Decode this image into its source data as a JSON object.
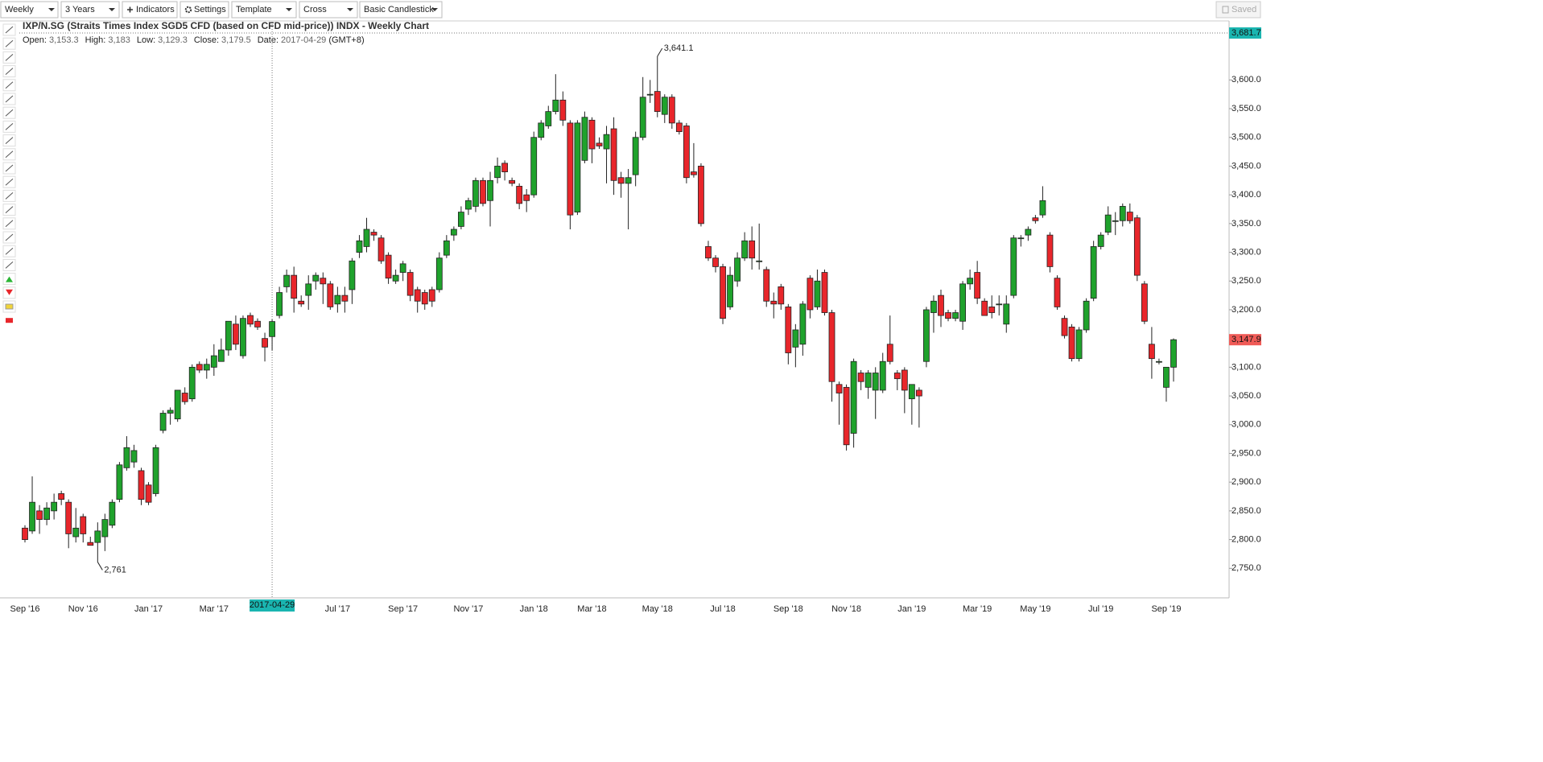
{
  "toolbar": {
    "interval": "Weekly",
    "range": "3 Years",
    "indicators": "Indicators",
    "settings": "Settings",
    "template": "Template",
    "cursor": "Cross",
    "style": "Basic Candlestick",
    "saved": "Saved"
  },
  "chart_data": {
    "type": "candlestick",
    "title": "IXP/N.SG (Straits Times Index SGD5 CFD (based on CFD mid-price)) INDX - Weekly Chart",
    "info": [
      {
        "label": "Open:",
        "value": "3,153.3"
      },
      {
        "label": "High:",
        "value": "3,183"
      },
      {
        "label": "Low:",
        "value": "3,129.3"
      },
      {
        "label": "Close:",
        "value": "3,179.5"
      },
      {
        "label": "Date:",
        "value": "2017-04-29"
      }
    ],
    "timezone": "(GMT+8)",
    "up_color": "#1fa22c",
    "down_color": "#e8262b",
    "categories": [
      "Sep '16",
      null,
      null,
      null,
      null,
      null,
      null,
      null,
      "Nov '16",
      null,
      null,
      null,
      null,
      null,
      null,
      null,
      null,
      "Jan '17",
      null,
      null,
      null,
      null,
      null,
      null,
      null,
      null,
      "Mar '17",
      null,
      null,
      null,
      null,
      null,
      null,
      null,
      "2017-04-29",
      null,
      null,
      null,
      null,
      null,
      null,
      null,
      null,
      "Jul '17",
      null,
      null,
      null,
      null,
      null,
      null,
      null,
      null,
      "Sep '17",
      null,
      null,
      null,
      null,
      null,
      null,
      null,
      null,
      "Nov '17",
      null,
      null,
      null,
      null,
      null,
      null,
      null,
      null,
      "Jan '18",
      null,
      null,
      null,
      null,
      null,
      null,
      null,
      "Mar '18",
      null,
      null,
      null,
      null,
      null,
      null,
      null,
      null,
      "May '18",
      null,
      null,
      null,
      null,
      null,
      null,
      null,
      null,
      "Jul '18",
      null,
      null,
      null,
      null,
      null,
      null,
      null,
      null,
      "Sep '18",
      null,
      null,
      null,
      null,
      null,
      null,
      null,
      "Nov '18",
      null,
      null,
      null,
      null,
      null,
      null,
      null,
      null,
      "Jan '19",
      null,
      null,
      null,
      null,
      null,
      null,
      null,
      null,
      "Mar '19",
      null,
      null,
      null,
      null,
      null,
      null,
      null,
      "May '19",
      null,
      null,
      null,
      null,
      null,
      null,
      null,
      null,
      "Jul '19",
      null,
      null,
      null,
      null,
      null,
      null,
      null,
      null,
      "Sep '19",
      null
    ],
    "open": [
      2820,
      2815,
      2850,
      2835,
      2850,
      2880,
      2865,
      2805,
      2840,
      2795,
      2795,
      2805,
      2825,
      2870,
      2925,
      2935,
      2920,
      2895,
      2880,
      2990,
      3020,
      3010,
      3055,
      3045,
      3105,
      3095,
      3100,
      3110,
      3130,
      3175,
      3120,
      3190,
      3180,
      3150,
      3153.3,
      3190,
      3240,
      3260,
      3215,
      3225,
      3250,
      3255,
      3245,
      3210,
      3225,
      3235,
      3300,
      3310,
      3335,
      3325,
      3295,
      3250,
      3265,
      3265,
      3235,
      3230,
      3235,
      3235,
      3295,
      3330,
      3345,
      3375,
      3380,
      3425,
      3390,
      3430,
      3455,
      3425,
      3415,
      3400,
      3400,
      3500,
      3520,
      3545,
      3565,
      3525,
      3370,
      3460,
      3530,
      3490,
      3480,
      3515,
      3430,
      3420,
      3435,
      3500,
      3575,
      3580,
      3540,
      3570,
      3525,
      3520,
      3440,
      3450,
      3310,
      3290,
      3275,
      3205,
      3250,
      3290,
      3320,
      3285,
      3270,
      3215,
      3240,
      3205,
      3135,
      3140,
      3255,
      3205,
      3265,
      3195,
      3070,
      3065,
      2985,
      3090,
      3065,
      3060,
      3060,
      3140,
      3090,
      3095,
      3045,
      3060,
      3110,
      3195,
      3225,
      3195,
      3185,
      3180,
      3245,
      3265,
      3215,
      3205,
      3210,
      3175,
      3225,
      3325,
      3330,
      3360,
      3365,
      3330,
      3255,
      3185,
      3170,
      3115,
      3165,
      3220,
      3310,
      3335,
      3355,
      3355,
      3370,
      3360,
      3245,
      3140,
      3110,
      3065,
      3100
    ],
    "high": [
      2825,
      2910,
      2860,
      2865,
      2880,
      2885,
      2870,
      2855,
      2845,
      2805,
      2830,
      2845,
      2870,
      2935,
      2980,
      2965,
      2925,
      2900,
      2965,
      3025,
      3030,
      3060,
      3065,
      3105,
      3110,
      3115,
      3140,
      3150,
      3180,
      3190,
      3190,
      3195,
      3185,
      3160,
      3183,
      3240,
      3270,
      3275,
      3225,
      3260,
      3265,
      3265,
      3250,
      3240,
      3240,
      3290,
      3330,
      3360,
      3340,
      3330,
      3300,
      3270,
      3285,
      3270,
      3240,
      3235,
      3240,
      3300,
      3330,
      3345,
      3380,
      3395,
      3430,
      3430,
      3440,
      3465,
      3460,
      3430,
      3420,
      3410,
      3510,
      3530,
      3555,
      3610,
      3580,
      3530,
      3530,
      3545,
      3535,
      3500,
      3520,
      3535,
      3440,
      3445,
      3510,
      3605,
      3600,
      3641.1,
      3575,
      3575,
      3530,
      3525,
      3490,
      3455,
      3320,
      3295,
      3280,
      3275,
      3300,
      3335,
      3345,
      3350,
      3275,
      3230,
      3245,
      3210,
      3175,
      3215,
      3260,
      3270,
      3270,
      3200,
      3075,
      3070,
      3115,
      3095,
      3095,
      3100,
      3125,
      3190,
      3095,
      3100,
      3070,
      3065,
      3205,
      3225,
      3235,
      3200,
      3200,
      3250,
      3270,
      3285,
      3220,
      3225,
      3225,
      3225,
      3330,
      3330,
      3345,
      3365,
      3415,
      3335,
      3260,
      3190,
      3175,
      3170,
      3220,
      3320,
      3335,
      3380,
      3370,
      3385,
      3385,
      3365,
      3250,
      3170,
      3115,
      3100,
      3150
    ],
    "low": [
      2795,
      2810,
      2810,
      2825,
      2835,
      2860,
      2785,
      2795,
      2795,
      2790,
      2761,
      2780,
      2820,
      2865,
      2920,
      2925,
      2860,
      2860,
      2875,
      2985,
      3000,
      3005,
      3035,
      3040,
      3090,
      3080,
      3085,
      3110,
      3120,
      3130,
      3115,
      3170,
      3165,
      3110,
      3129.3,
      3185,
      3230,
      3195,
      3205,
      3200,
      3235,
      3210,
      3200,
      3195,
      3195,
      3210,
      3290,
      3300,
      3320,
      3280,
      3245,
      3245,
      3250,
      3215,
      3195,
      3200,
      3205,
      3230,
      3290,
      3320,
      3340,
      3365,
      3370,
      3380,
      3345,
      3420,
      3425,
      3415,
      3375,
      3370,
      3395,
      3495,
      3515,
      3540,
      3520,
      3340,
      3365,
      3455,
      3455,
      3480,
      3420,
      3400,
      3395,
      3340,
      3415,
      3495,
      3560,
      3535,
      3525,
      3515,
      3505,
      3420,
      3430,
      3345,
      3285,
      3265,
      3175,
      3200,
      3240,
      3285,
      3270,
      3270,
      3205,
      3185,
      3200,
      3105,
      3100,
      3120,
      3185,
      3200,
      3190,
      3040,
      3000,
      2955,
      2960,
      3060,
      3045,
      3010,
      3055,
      3105,
      3060,
      3020,
      3000,
      2995,
      3100,
      3160,
      3170,
      3180,
      3180,
      3165,
      3235,
      3210,
      3190,
      3185,
      3190,
      3160,
      3220,
      3310,
      3320,
      3350,
      3360,
      3265,
      3200,
      3150,
      3110,
      3110,
      3160,
      3215,
      3305,
      3330,
      3330,
      3345,
      3350,
      3250,
      3175,
      3080,
      3105,
      3040,
      3075
    ],
    "close": [
      2800,
      2865,
      2835,
      2855,
      2865,
      2870,
      2810,
      2820,
      2810,
      2790,
      2815,
      2835,
      2865,
      2930,
      2960,
      2955,
      2870,
      2865,
      2960,
      3020,
      3025,
      3060,
      3040,
      3100,
      3095,
      3105,
      3120,
      3130,
      3180,
      3140,
      3185,
      3175,
      3170,
      3135,
      3179.5,
      3230,
      3260,
      3220,
      3210,
      3245,
      3260,
      3245,
      3205,
      3225,
      3215,
      3285,
      3320,
      3340,
      3330,
      3285,
      3255,
      3260,
      3280,
      3225,
      3215,
      3210,
      3215,
      3290,
      3320,
      3340,
      3370,
      3390,
      3425,
      3385,
      3425,
      3450,
      3440,
      3420,
      3385,
      3390,
      3500,
      3525,
      3545,
      3565,
      3530,
      3365,
      3525,
      3535,
      3480,
      3485,
      3505,
      3425,
      3420,
      3430,
      3500,
      3570,
      3575,
      3545,
      3570,
      3525,
      3510,
      3430,
      3435,
      3350,
      3290,
      3275,
      3185,
      3260,
      3290,
      3320,
      3290,
      3285,
      3215,
      3210,
      3210,
      3125,
      3165,
      3210,
      3200,
      3250,
      3195,
      3075,
      3055,
      2965,
      3110,
      3075,
      3090,
      3090,
      3110,
      3110,
      3080,
      3060,
      3070,
      3050,
      3200,
      3215,
      3190,
      3185,
      3195,
      3245,
      3255,
      3220,
      3190,
      3195,
      3210,
      3210,
      3325,
      3325,
      3340,
      3355,
      3390,
      3275,
      3205,
      3155,
      3115,
      3165,
      3215,
      3310,
      3330,
      3365,
      3355,
      3380,
      3355,
      3260,
      3180,
      3115,
      3110,
      3100,
      3147.9
    ],
    "ylim": [
      2700,
      3681.7
    ],
    "yticks": [
      {
        "value": 2750,
        "label": "2,750.0"
      },
      {
        "value": 2800,
        "label": "2,800.0"
      },
      {
        "value": 2850,
        "label": "2,850.0"
      },
      {
        "value": 2900,
        "label": "2,900.0"
      },
      {
        "value": 2950,
        "label": "2,950.0"
      },
      {
        "value": 3000,
        "label": "3,000.0"
      },
      {
        "value": 3050,
        "label": "3,050.0"
      },
      {
        "value": 3100,
        "label": "3,100.0"
      },
      {
        "value": 3150,
        "label": "3,150.0"
      },
      {
        "value": 3200,
        "label": "3,200.0"
      },
      {
        "value": 3250,
        "label": "3,250.0"
      },
      {
        "value": 3300,
        "label": "3,300.0"
      },
      {
        "value": 3350,
        "label": "3,350.0"
      },
      {
        "value": 3400,
        "label": "3,400.0"
      },
      {
        "value": 3450,
        "label": "3,450.0"
      },
      {
        "value": 3500,
        "label": "3,500.0"
      },
      {
        "value": 3550,
        "label": "3,550.0"
      },
      {
        "value": 3600,
        "label": "3,600.0"
      }
    ],
    "annotations": [
      {
        "value": 3641.1,
        "label": "3,641.1"
      },
      {
        "value": 2761,
        "label": "2,761"
      }
    ],
    "crosshair_y": {
      "value": 3681.7,
      "label": "3,681.7"
    },
    "last_price": {
      "value": 3147.9,
      "label": "3,147.9"
    }
  }
}
